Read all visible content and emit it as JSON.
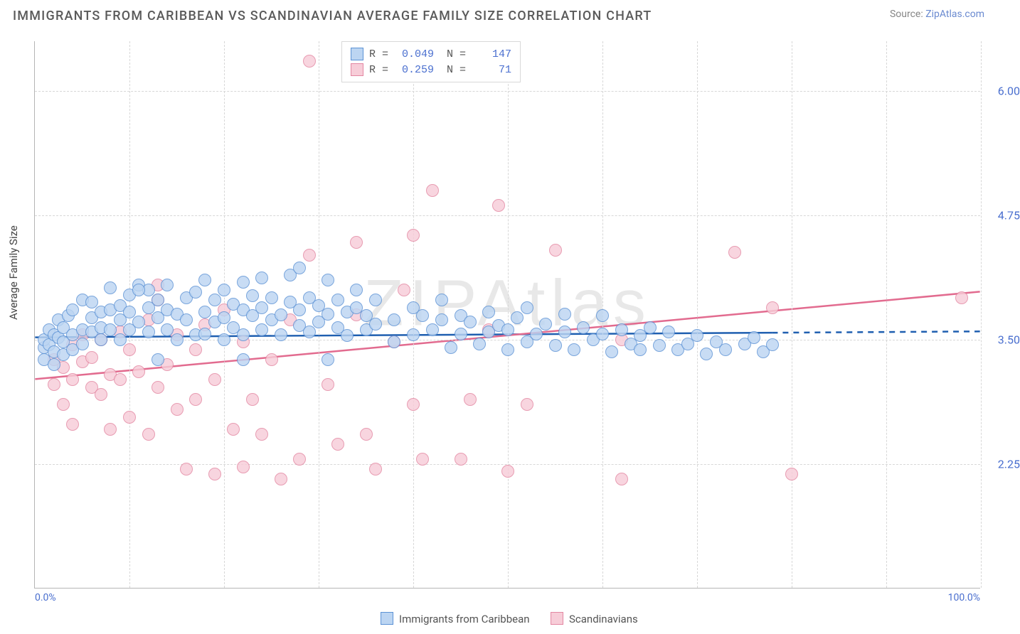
{
  "title": "IMMIGRANTS FROM CARIBBEAN VS SCANDINAVIAN AVERAGE FAMILY SIZE CORRELATION CHART",
  "source_label": "Source: ",
  "source_name": "ZipAtlas.com",
  "watermark": "ZIPAtlas",
  "y_axis_label": "Average Family Size",
  "chart": {
    "type": "scatter",
    "background": "#ffffff",
    "grid_color": "#d7d7d7",
    "axis_color": "#b5b5b5",
    "xlim": [
      0,
      100
    ],
    "ylim": [
      1.0,
      6.5
    ],
    "x_ticks": [
      0,
      10,
      20,
      30,
      40,
      50,
      60,
      70,
      80,
      90,
      100
    ],
    "x_tick_labels": {
      "0": "0.0%",
      "100": "100.0%"
    },
    "y_ticks": [
      2.25,
      3.5,
      4.75,
      6.0
    ],
    "y_tick_fontsize": 16,
    "y_tick_color": "#4a6fcf",
    "marker_radius": 9,
    "marker_border_width": 1,
    "trend_line_width": 2.5,
    "series": [
      {
        "name": "Immigrants from Caribbean",
        "fill": "#bcd5f2",
        "stroke": "#5c92d5",
        "R": "0.049",
        "N": "147",
        "trend": {
          "y_at_x0": 3.52,
          "y_at_x100": 3.58,
          "color": "#1f5fb0",
          "dashed_after_pct": 78
        },
        "points": [
          [
            1,
            3.42
          ],
          [
            1,
            3.3
          ],
          [
            1,
            3.5
          ],
          [
            1.5,
            3.45
          ],
          [
            1.5,
            3.6
          ],
          [
            2,
            3.38
          ],
          [
            2,
            3.55
          ],
          [
            2,
            3.25
          ],
          [
            2.5,
            3.52
          ],
          [
            2.5,
            3.7
          ],
          [
            3,
            3.48
          ],
          [
            3,
            3.35
          ],
          [
            3,
            3.62
          ],
          [
            3.5,
            3.74
          ],
          [
            4,
            3.55
          ],
          [
            4,
            3.8
          ],
          [
            4,
            3.4
          ],
          [
            5,
            3.6
          ],
          [
            5,
            3.9
          ],
          [
            5,
            3.46
          ],
          [
            6,
            3.58
          ],
          [
            6,
            3.72
          ],
          [
            6,
            3.88
          ],
          [
            7,
            3.62
          ],
          [
            7,
            3.78
          ],
          [
            7,
            3.5
          ],
          [
            8,
            3.8
          ],
          [
            8,
            3.6
          ],
          [
            8,
            4.02
          ],
          [
            9,
            3.7
          ],
          [
            9,
            3.84
          ],
          [
            9,
            3.5
          ],
          [
            10,
            3.78
          ],
          [
            10,
            3.95
          ],
          [
            10,
            3.6
          ],
          [
            11,
            3.68
          ],
          [
            11,
            4.05
          ],
          [
            12,
            3.82
          ],
          [
            12,
            3.58
          ],
          [
            12,
            4.0
          ],
          [
            13,
            3.72
          ],
          [
            13,
            3.9
          ],
          [
            14,
            3.6
          ],
          [
            14,
            3.8
          ],
          [
            14,
            4.05
          ],
          [
            15,
            3.76
          ],
          [
            15,
            3.5
          ],
          [
            16,
            3.92
          ],
          [
            16,
            3.7
          ],
          [
            17,
            3.55
          ],
          [
            17,
            3.98
          ],
          [
            18,
            3.78
          ],
          [
            18,
            3.56
          ],
          [
            18,
            4.1
          ],
          [
            19,
            3.68
          ],
          [
            19,
            3.9
          ],
          [
            20,
            3.72
          ],
          [
            20,
            3.5
          ],
          [
            20,
            4.0
          ],
          [
            21,
            3.86
          ],
          [
            21,
            3.62
          ],
          [
            22,
            3.8
          ],
          [
            22,
            3.55
          ],
          [
            22,
            4.08
          ],
          [
            23,
            3.74
          ],
          [
            23,
            3.94
          ],
          [
            24,
            3.6
          ],
          [
            24,
            3.82
          ],
          [
            24,
            4.12
          ],
          [
            25,
            3.7
          ],
          [
            25,
            3.92
          ],
          [
            26,
            3.75
          ],
          [
            26,
            3.55
          ],
          [
            27,
            3.88
          ],
          [
            27,
            4.15
          ],
          [
            28,
            3.64
          ],
          [
            28,
            3.8
          ],
          [
            28,
            4.22
          ],
          [
            29,
            3.92
          ],
          [
            29,
            3.58
          ],
          [
            30,
            3.68
          ],
          [
            30,
            3.84
          ],
          [
            31,
            3.76
          ],
          [
            31,
            4.1
          ],
          [
            32,
            3.62
          ],
          [
            32,
            3.9
          ],
          [
            33,
            3.78
          ],
          [
            33,
            3.54
          ],
          [
            34,
            3.82
          ],
          [
            34,
            4.0
          ],
          [
            35,
            3.74
          ],
          [
            35,
            3.6
          ],
          [
            36,
            3.9
          ],
          [
            36,
            3.66
          ],
          [
            38,
            3.7
          ],
          [
            38,
            3.48
          ],
          [
            40,
            3.82
          ],
          [
            40,
            3.55
          ],
          [
            41,
            3.74
          ],
          [
            42,
            3.6
          ],
          [
            43,
            3.7
          ],
          [
            43,
            3.9
          ],
          [
            44,
            3.42
          ],
          [
            45,
            3.74
          ],
          [
            45,
            3.56
          ],
          [
            46,
            3.68
          ],
          [
            47,
            3.46
          ],
          [
            48,
            3.78
          ],
          [
            48,
            3.58
          ],
          [
            49,
            3.64
          ],
          [
            50,
            3.6
          ],
          [
            50,
            3.4
          ],
          [
            51,
            3.72
          ],
          [
            52,
            3.48
          ],
          [
            52,
            3.82
          ],
          [
            53,
            3.56
          ],
          [
            54,
            3.66
          ],
          [
            55,
            3.44
          ],
          [
            56,
            3.58
          ],
          [
            56,
            3.76
          ],
          [
            57,
            3.4
          ],
          [
            58,
            3.62
          ],
          [
            59,
            3.5
          ],
          [
            60,
            3.56
          ],
          [
            60,
            3.74
          ],
          [
            61,
            3.38
          ],
          [
            62,
            3.6
          ],
          [
            63,
            3.46
          ],
          [
            64,
            3.54
          ],
          [
            64,
            3.4
          ],
          [
            65,
            3.62
          ],
          [
            66,
            3.44
          ],
          [
            67,
            3.58
          ],
          [
            68,
            3.4
          ],
          [
            69,
            3.46
          ],
          [
            70,
            3.54
          ],
          [
            71,
            3.36
          ],
          [
            72,
            3.48
          ],
          [
            73,
            3.4
          ],
          [
            75,
            3.46
          ],
          [
            76,
            3.52
          ],
          [
            77,
            3.38
          ],
          [
            78,
            3.45
          ],
          [
            11,
            4.0
          ],
          [
            13,
            3.3
          ],
          [
            31,
            3.3
          ],
          [
            22,
            3.3
          ]
        ]
      },
      {
        "name": "Scandinavians",
        "fill": "#f7cdd8",
        "stroke": "#e387a2",
        "R": "0.259",
        "N": "71",
        "trend": {
          "y_at_x0": 3.1,
          "y_at_x100": 3.98,
          "color": "#e26b8f",
          "dashed_after_pct": 100
        },
        "points": [
          [
            2,
            3.3
          ],
          [
            2,
            3.05
          ],
          [
            3,
            3.22
          ],
          [
            3,
            2.85
          ],
          [
            4,
            3.45
          ],
          [
            4,
            3.1
          ],
          [
            4,
            2.65
          ],
          [
            5,
            3.28
          ],
          [
            5,
            3.55
          ],
          [
            6,
            3.02
          ],
          [
            6,
            3.32
          ],
          [
            7,
            2.95
          ],
          [
            7,
            3.5
          ],
          [
            8,
            3.15
          ],
          [
            8,
            2.6
          ],
          [
            9,
            3.58
          ],
          [
            9,
            3.1
          ],
          [
            10,
            2.72
          ],
          [
            10,
            3.4
          ],
          [
            11,
            3.18
          ],
          [
            12,
            2.55
          ],
          [
            12,
            3.7
          ],
          [
            13,
            3.02
          ],
          [
            13,
            4.05
          ],
          [
            14,
            3.25
          ],
          [
            15,
            2.8
          ],
          [
            15,
            3.55
          ],
          [
            16,
            2.2
          ],
          [
            17,
            3.4
          ],
          [
            17,
            2.9
          ],
          [
            18,
            3.65
          ],
          [
            19,
            2.15
          ],
          [
            19,
            3.1
          ],
          [
            20,
            3.8
          ],
          [
            21,
            2.6
          ],
          [
            22,
            2.22
          ],
          [
            22,
            3.48
          ],
          [
            23,
            2.9
          ],
          [
            24,
            2.55
          ],
          [
            25,
            3.3
          ],
          [
            26,
            2.1
          ],
          [
            27,
            3.7
          ],
          [
            28,
            2.3
          ],
          [
            29,
            4.35
          ],
          [
            29,
            6.3
          ],
          [
            31,
            3.05
          ],
          [
            32,
            2.45
          ],
          [
            34,
            3.75
          ],
          [
            34,
            4.48
          ],
          [
            35,
            2.55
          ],
          [
            36,
            2.2
          ],
          [
            38,
            3.48
          ],
          [
            39,
            4.0
          ],
          [
            40,
            4.55
          ],
          [
            40,
            2.85
          ],
          [
            41,
            2.3
          ],
          [
            42,
            5.0
          ],
          [
            45,
            2.3
          ],
          [
            46,
            2.9
          ],
          [
            48,
            3.6
          ],
          [
            49,
            4.85
          ],
          [
            50,
            2.18
          ],
          [
            52,
            2.85
          ],
          [
            55,
            4.4
          ],
          [
            62,
            3.5
          ],
          [
            62,
            2.1
          ],
          [
            74,
            4.38
          ],
          [
            78,
            3.82
          ],
          [
            80,
            2.15
          ],
          [
            98,
            3.92
          ],
          [
            13,
            3.9
          ]
        ]
      }
    ]
  }
}
